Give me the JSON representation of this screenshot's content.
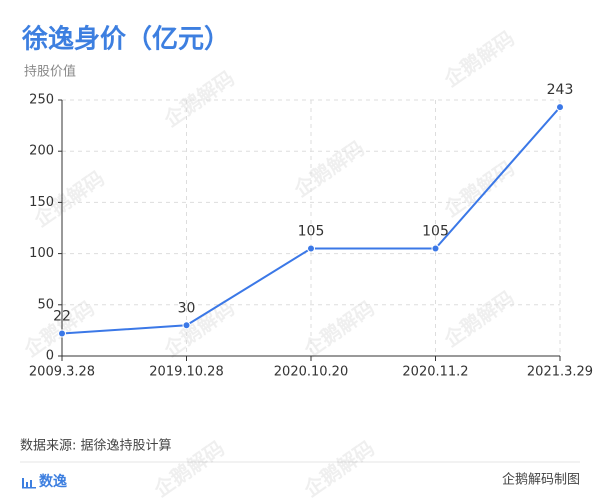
{
  "chart_data": {
    "type": "line",
    "title": "徐逸身价（亿元）",
    "y_label": "持股价值",
    "categories": [
      "2009.3.28",
      "2019.10.28",
      "2020.10.20",
      "2020.11.2",
      "2021.3.29"
    ],
    "values": [
      22,
      30,
      105,
      105,
      243
    ],
    "color": "#3b78e7",
    "ylim": [
      0,
      250
    ],
    "yticks": [
      0,
      50,
      100,
      150,
      200,
      250
    ],
    "grid": true,
    "source": "数据来源: 据徐逸持股计算",
    "brand": "数逸",
    "credit": "企鹅解码制图",
    "watermark": "企鹅解码"
  }
}
